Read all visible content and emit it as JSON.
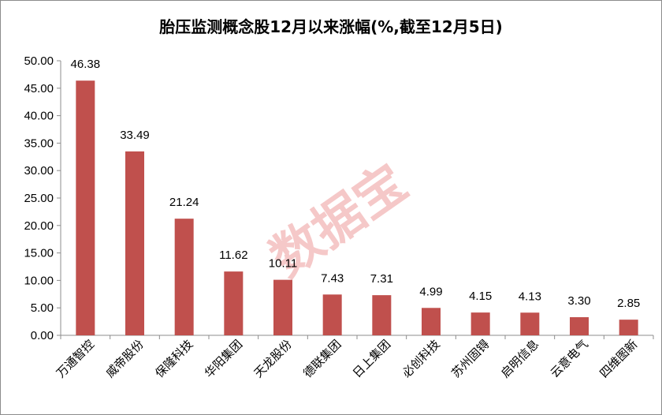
{
  "chart_data": {
    "type": "bar",
    "title": "胎压监测概念股12月以来涨幅(%,截至12月5日)",
    "categories": [
      "万通智控",
      "威帝股份",
      "保隆科技",
      "华阳集团",
      "天龙股份",
      "德联集团",
      "日上集团",
      "必创科技",
      "苏州固锝",
      "启明信息",
      "云意电气",
      "四维图新"
    ],
    "values": [
      46.38,
      33.49,
      21.24,
      11.62,
      10.11,
      7.43,
      7.31,
      4.99,
      4.15,
      4.13,
      3.3,
      2.85
    ],
    "value_labels": [
      "46.38",
      "33.49",
      "21.24",
      "11.62",
      "10.11",
      "7.43",
      "7.31",
      "4.99",
      "4.15",
      "4.13",
      "3.30",
      "2.85"
    ],
    "ylim": [
      0,
      50
    ],
    "yticks": [
      "0.00",
      "5.00",
      "10.00",
      "15.00",
      "20.00",
      "25.00",
      "30.00",
      "35.00",
      "40.00",
      "45.00",
      "50.00"
    ],
    "xlabel": "",
    "ylabel": "",
    "grid": false,
    "bar_color": "#c0504d",
    "watermark": "数据宝"
  }
}
